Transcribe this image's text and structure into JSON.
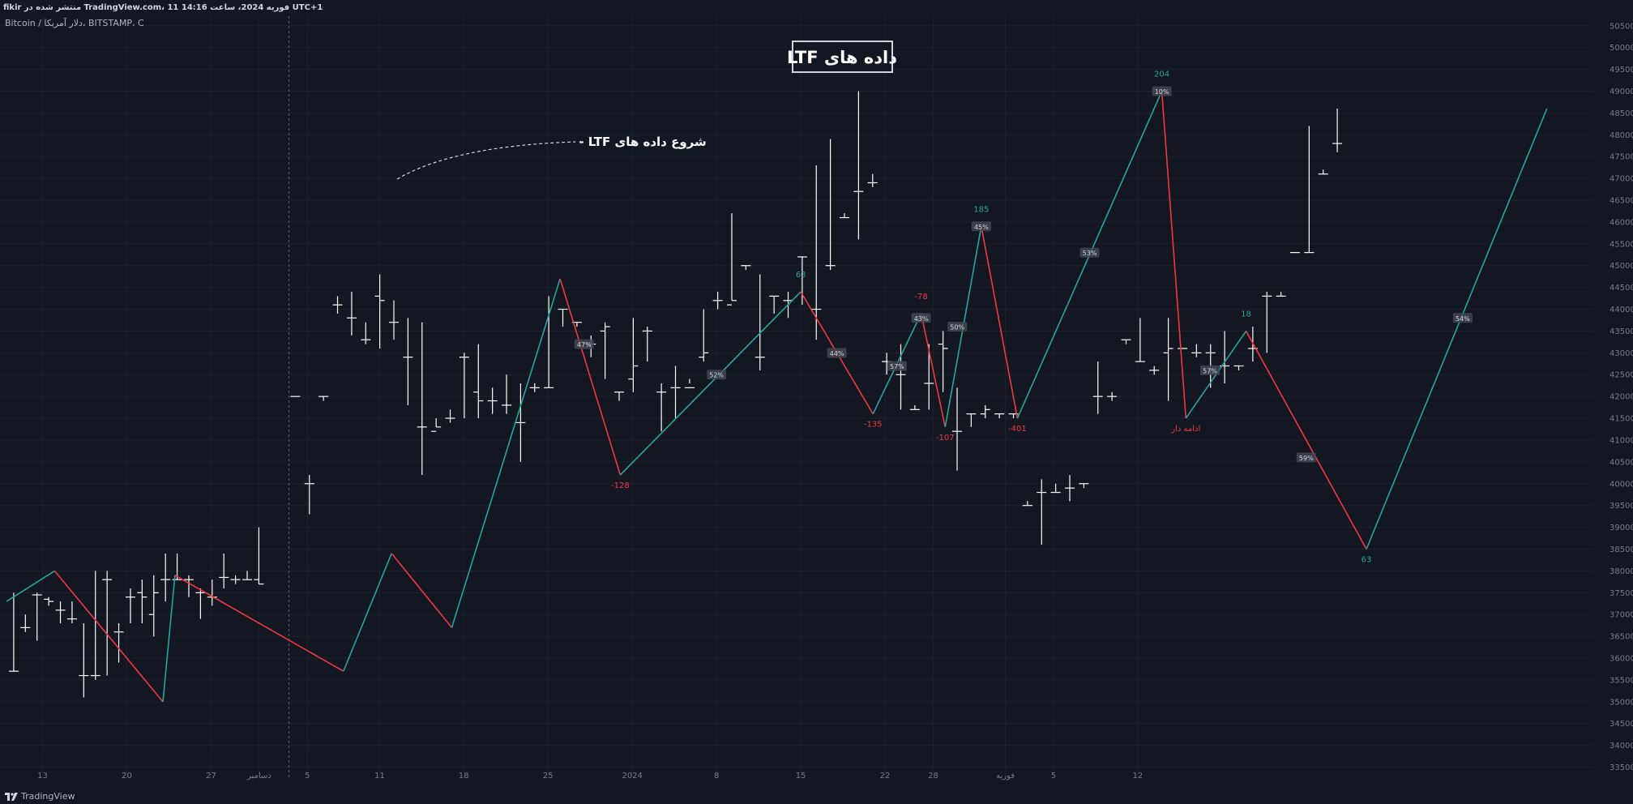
{
  "header": {
    "published_text": "fikir منتشر شده در TradingView.com، 11 فوریه 2024، ساعت 14:16 UTC+1",
    "symbol_text": "Bitcoin / دلار آمریکا، BITSTAMP، C"
  },
  "footer": {
    "brand": "TradingView"
  },
  "annotations": {
    "title_box": "داده های LTF",
    "start_label": "شروع داده های LTF -"
  },
  "colors": {
    "background": "#131722",
    "up_leg": "#26a69a",
    "down_leg": "#f23645",
    "candle": "#ffffff",
    "grid": "#1e222d",
    "axis_text": "#787b86"
  },
  "chart_data": {
    "type": "line",
    "title": "داده های LTF",
    "ylim": [
      33250,
      50700
    ],
    "y_ticks": [
      33500,
      34000,
      34500,
      35000,
      35500,
      36000,
      36500,
      37000,
      37500,
      38000,
      38500,
      39000,
      39500,
      40000,
      40500,
      41000,
      41500,
      42000,
      42500,
      43000,
      43500,
      44000,
      44500,
      45000,
      45500,
      46000,
      46500,
      47000,
      47500,
      48000,
      48500,
      49000,
      49500,
      50000,
      50500
    ],
    "x_ticks": [
      {
        "label": "13",
        "bar": 3
      },
      {
        "label": "20",
        "bar": 10
      },
      {
        "label": "27",
        "bar": 17
      },
      {
        "label": "دسامبر",
        "bar": 21
      },
      {
        "label": "5",
        "bar": 25
      },
      {
        "label": "11",
        "bar": 31
      },
      {
        "label": "18",
        "bar": 38
      },
      {
        "label": "25",
        "bar": 45
      },
      {
        "label": "2024",
        "bar": 52
      },
      {
        "label": "8",
        "bar": 59
      },
      {
        "label": "15",
        "bar": 66
      },
      {
        "label": "22",
        "bar": 73
      },
      {
        "label": "28",
        "bar": 77
      },
      {
        "label": "فوریه",
        "bar": 83
      },
      {
        "label": "5",
        "bar": 87
      },
      {
        "label": "12",
        "bar": 94
      }
    ],
    "ltf_start_bar": 23,
    "candles": [
      {
        "h": 37500,
        "l": 35700,
        "o": 35700,
        "c": 35700
      },
      {
        "h": 37000,
        "l": 36600,
        "o": 36700,
        "c": 36700
      },
      {
        "h": 37500,
        "l": 36400,
        "o": 37450,
        "c": 37450
      },
      {
        "h": 37400,
        "l": 37200,
        "o": 37350,
        "c": 37300
      },
      {
        "h": 37300,
        "l": 36800,
        "o": 37100,
        "c": 37100
      },
      {
        "h": 37300,
        "l": 36800,
        "o": 36900,
        "c": 36900
      },
      {
        "h": 36800,
        "l": 35100,
        "o": 35600,
        "c": 35600
      },
      {
        "h": 38000,
        "l": 35500,
        "o": 35600,
        "c": 35600
      },
      {
        "h": 38000,
        "l": 35600,
        "o": 37800,
        "c": 37800
      },
      {
        "h": 36800,
        "l": 35900,
        "o": 36600,
        "c": 36600
      },
      {
        "h": 37600,
        "l": 36800,
        "o": 37400,
        "c": 37400
      },
      {
        "h": 37800,
        "l": 36800,
        "o": 37500,
        "c": 37400
      },
      {
        "h": 37900,
        "l": 36500,
        "o": 37000,
        "c": 37500
      },
      {
        "h": 38400,
        "l": 37300,
        "o": 37800,
        "c": 37800
      },
      {
        "h": 38400,
        "l": 37800,
        "o": 37800,
        "c": 37800
      },
      {
        "h": 37900,
        "l": 37400,
        "o": 37800,
        "c": 37800
      },
      {
        "h": 37600,
        "l": 36900,
        "o": 37500,
        "c": 37500
      },
      {
        "h": 37800,
        "l": 37200,
        "o": 37400,
        "c": 37400
      },
      {
        "h": 38400,
        "l": 37600,
        "o": 37850,
        "c": 37850
      },
      {
        "h": 37900,
        "l": 37700,
        "o": 37800,
        "c": 37800
      },
      {
        "h": 38000,
        "l": 37800,
        "o": 37800,
        "c": 37800
      },
      {
        "h": 39000,
        "l": 37700,
        "o": 37800,
        "c": 37700
      },
      {
        "h": 42000,
        "l": 42000,
        "o": 42000,
        "c": 42000
      },
      {
        "h": 40200,
        "l": 39300,
        "o": 40000,
        "c": 40000
      },
      {
        "h": 42000,
        "l": 41900,
        "o": 42000,
        "c": 42000
      },
      {
        "h": 44300,
        "l": 43900,
        "o": 44100,
        "c": 44100
      },
      {
        "h": 44400,
        "l": 43400,
        "o": 43800,
        "c": 43800
      },
      {
        "h": 43700,
        "l": 43200,
        "o": 43300,
        "c": 43300
      },
      {
        "h": 44800,
        "l": 43100,
        "o": 44300,
        "c": 44200
      },
      {
        "h": 44200,
        "l": 43300,
        "o": 43700,
        "c": 43700
      },
      {
        "h": 43800,
        "l": 41800,
        "o": 42900,
        "c": 42900
      },
      {
        "h": 43700,
        "l": 40200,
        "o": 41300,
        "c": 41300
      },
      {
        "h": 41500,
        "l": 41300,
        "o": 41200,
        "c": 41300
      },
      {
        "h": 41700,
        "l": 41400,
        "o": 41500,
        "c": 41500
      },
      {
        "h": 43000,
        "l": 41500,
        "o": 42900,
        "c": 42900
      },
      {
        "h": 43200,
        "l": 41500,
        "o": 42100,
        "c": 41900
      },
      {
        "h": 42200,
        "l": 41600,
        "o": 41900,
        "c": 41900
      },
      {
        "h": 42500,
        "l": 41600,
        "o": 41800,
        "c": 41800
      },
      {
        "h": 42300,
        "l": 40500,
        "o": 41400,
        "c": 41400
      },
      {
        "h": 42300,
        "l": 42100,
        "o": 42200,
        "c": 42200
      },
      {
        "h": 44300,
        "l": 42200,
        "o": 42200,
        "c": 42200
      },
      {
        "h": 44000,
        "l": 43600,
        "o": 44000,
        "c": 44000
      },
      {
        "h": 43700,
        "l": 43600,
        "o": 43700,
        "c": 43700
      },
      {
        "h": 43400,
        "l": 42900,
        "o": 43200,
        "c": 43200
      },
      {
        "h": 43700,
        "l": 42400,
        "o": 43500,
        "c": 43600
      },
      {
        "h": 42100,
        "l": 41900,
        "o": 42100,
        "c": 42100
      },
      {
        "h": 43800,
        "l": 42100,
        "o": 42400,
        "c": 42700
      },
      {
        "h": 43600,
        "l": 42800,
        "o": 43500,
        "c": 43500
      },
      {
        "h": 42300,
        "l": 41200,
        "o": 42100,
        "c": 42100
      },
      {
        "h": 42700,
        "l": 41500,
        "o": 42200,
        "c": 42200
      },
      {
        "h": 42400,
        "l": 42300,
        "o": 42200,
        "c": 42200
      },
      {
        "h": 44000,
        "l": 42800,
        "o": 42900,
        "c": 43000
      },
      {
        "h": 44400,
        "l": 44000,
        "o": 44200,
        "c": 44200
      },
      {
        "h": 46200,
        "l": 44200,
        "o": 44100,
        "c": 44200
      },
      {
        "h": 45000,
        "l": 44900,
        "o": 45000,
        "c": 45000
      },
      {
        "h": 44800,
        "l": 42600,
        "o": 42900,
        "c": 42900
      },
      {
        "h": 44300,
        "l": 43900,
        "o": 44300,
        "c": 44300
      },
      {
        "h": 44400,
        "l": 43800,
        "o": 44200,
        "c": 44200
      },
      {
        "h": 45200,
        "l": 44100,
        "o": 45200,
        "c": 45200
      },
      {
        "h": 47300,
        "l": 43300,
        "o": 44000,
        "c": 44000
      },
      {
        "h": 47900,
        "l": 44900,
        "o": 45000,
        "c": 45000
      },
      {
        "h": 46200,
        "l": 46100,
        "o": 46100,
        "c": 46100
      },
      {
        "h": 49000,
        "l": 45600,
        "o": 46700,
        "c": 46700
      },
      {
        "h": 47100,
        "l": 46800,
        "o": 46900,
        "c": 46900
      },
      {
        "h": 43000,
        "l": 42500,
        "o": 42800,
        "c": 42800
      },
      {
        "h": 43200,
        "l": 41700,
        "o": 42500,
        "c": 42500
      },
      {
        "h": 41800,
        "l": 41700,
        "o": 41700,
        "c": 41700
      },
      {
        "h": 43200,
        "l": 41700,
        "o": 42300,
        "c": 42300
      },
      {
        "h": 43500,
        "l": 42100,
        "o": 43200,
        "c": 43100
      },
      {
        "h": 42200,
        "l": 40300,
        "o": 41200,
        "c": 41200
      },
      {
        "h": 41600,
        "l": 41300,
        "o": 41600,
        "c": 41600
      },
      {
        "h": 41800,
        "l": 41500,
        "o": 41600,
        "c": 41700
      },
      {
        "h": 41600,
        "l": 41500,
        "o": 41600,
        "c": 41600
      },
      {
        "h": 41600,
        "l": 41500,
        "o": 41600,
        "c": 41600
      },
      {
        "h": 39600,
        "l": 39500,
        "o": 39500,
        "c": 39500
      },
      {
        "h": 40100,
        "l": 38600,
        "o": 39800,
        "c": 39800
      },
      {
        "h": 40000,
        "l": 39800,
        "o": 39800,
        "c": 39800
      },
      {
        "h": 40200,
        "l": 39600,
        "o": 39900,
        "c": 39900
      },
      {
        "h": 40000,
        "l": 39900,
        "o": 40000,
        "c": 40000
      },
      {
        "h": 42800,
        "l": 41600,
        "o": 42000,
        "c": 42000
      },
      {
        "h": 42100,
        "l": 41900,
        "o": 42000,
        "c": 42000
      },
      {
        "h": 43300,
        "l": 43200,
        "o": 43300,
        "c": 43300
      },
      {
        "h": 43800,
        "l": 42800,
        "o": 42800,
        "c": 42800
      },
      {
        "h": 42700,
        "l": 42500,
        "o": 42600,
        "c": 42600
      },
      {
        "h": 43800,
        "l": 41900,
        "o": 43000,
        "c": 43100
      },
      {
        "h": 43100,
        "l": 43100,
        "o": 43100,
        "c": 43100
      },
      {
        "h": 43200,
        "l": 42900,
        "o": 43000,
        "c": 43000
      },
      {
        "h": 43200,
        "l": 42200,
        "o": 43000,
        "c": 43000
      },
      {
        "h": 43500,
        "l": 42300,
        "o": 42700,
        "c": 42700
      },
      {
        "h": 42700,
        "l": 42600,
        "o": 42700,
        "c": 42700
      },
      {
        "h": 43600,
        "l": 42800,
        "o": 43100,
        "c": 43100
      },
      {
        "h": 44400,
        "l": 43000,
        "o": 44300,
        "c": 44300
      },
      {
        "h": 44400,
        "l": 44300,
        "o": 44300,
        "c": 44300
      },
      {
        "h": 45300,
        "l": 45300,
        "o": 45300,
        "c": 45300
      },
      {
        "h": 48200,
        "l": 45300,
        "o": 45300,
        "c": 45300
      },
      {
        "h": 47200,
        "l": 47100,
        "o": 47100,
        "c": 47100
      },
      {
        "h": 48600,
        "l": 47600,
        "o": 47800,
        "c": 47800
      }
    ],
    "zigzag": [
      {
        "bar": 0,
        "price": 37300
      },
      {
        "bar": 4,
        "price": 38000
      },
      {
        "bar": 13,
        "price": 35000
      },
      {
        "bar": 14,
        "price": 37900
      },
      {
        "bar": 28,
        "price": 35700
      },
      {
        "bar": 32,
        "price": 38400
      },
      {
        "bar": 37,
        "price": 36700
      },
      {
        "bar": 46,
        "price": 44700
      },
      {
        "bar": 51,
        "price": 40200
      },
      {
        "bar": 66,
        "price": 44400
      },
      {
        "bar": 72,
        "price": 41600
      },
      {
        "bar": 76,
        "price": 43900
      },
      {
        "bar": 78,
        "price": 41300
      },
      {
        "bar": 81,
        "price": 45900
      },
      {
        "bar": 84,
        "price": 41500
      },
      {
        "bar": 96,
        "price": 49000
      },
      {
        "bar": 98,
        "price": 41500
      },
      {
        "bar": 103,
        "price": 43500
      },
      {
        "bar": 113,
        "price": 38500
      },
      {
        "bar": 128,
        "price": 48600
      }
    ],
    "pivot_labels": [
      {
        "text": "-128",
        "bar": 51,
        "price": 40200,
        "pos": "below",
        "color": "#f23645"
      },
      {
        "text": "63",
        "bar": 66,
        "price": 44400,
        "pos": "above",
        "color": "#26a69a"
      },
      {
        "text": "-135",
        "bar": 72,
        "price": 41600,
        "pos": "below",
        "color": "#f23645"
      },
      {
        "text": "-78",
        "bar": 76,
        "price": 43900,
        "pos": "above",
        "color": "#f23645"
      },
      {
        "text": "-107",
        "bar": 78,
        "price": 41300,
        "pos": "below",
        "color": "#f23645"
      },
      {
        "text": "185",
        "bar": 81,
        "price": 45900,
        "pos": "above",
        "color": "#26a69a"
      },
      {
        "text": "-401",
        "bar": 84,
        "price": 41500,
        "pos": "below",
        "color": "#f23645"
      },
      {
        "text": "204",
        "bar": 96,
        "price": 49000,
        "pos": "above",
        "color": "#26a69a"
      },
      {
        "text": "ادامه دار",
        "bar": 98,
        "price": 41500,
        "pos": "below",
        "color": "#f23645"
      },
      {
        "text": "18",
        "bar": 103,
        "price": 43500,
        "pos": "above",
        "color": "#26a69a"
      },
      {
        "text": "63",
        "bar": 113,
        "price": 38500,
        "pos": "below",
        "color": "#26a69a"
      }
    ],
    "pct_labels": [
      {
        "text": "47%",
        "bar": 48,
        "price": 43200
      },
      {
        "text": "52%",
        "bar": 59,
        "price": 42500
      },
      {
        "text": "44%",
        "bar": 69,
        "price": 43000
      },
      {
        "text": "57%",
        "bar": 74,
        "price": 42700
      },
      {
        "text": "43%",
        "bar": 76,
        "price": 43800
      },
      {
        "text": "50%",
        "bar": 79,
        "price": 43600
      },
      {
        "text": "45%",
        "bar": 81,
        "price": 45900
      },
      {
        "text": "53%",
        "bar": 90,
        "price": 45300
      },
      {
        "text": "10%",
        "bar": 96,
        "price": 49000
      },
      {
        "text": "57%",
        "bar": 100,
        "price": 42600
      },
      {
        "text": "59%",
        "bar": 108,
        "price": 40600
      },
      {
        "text": "54%",
        "bar": 121,
        "price": 43800
      }
    ]
  }
}
